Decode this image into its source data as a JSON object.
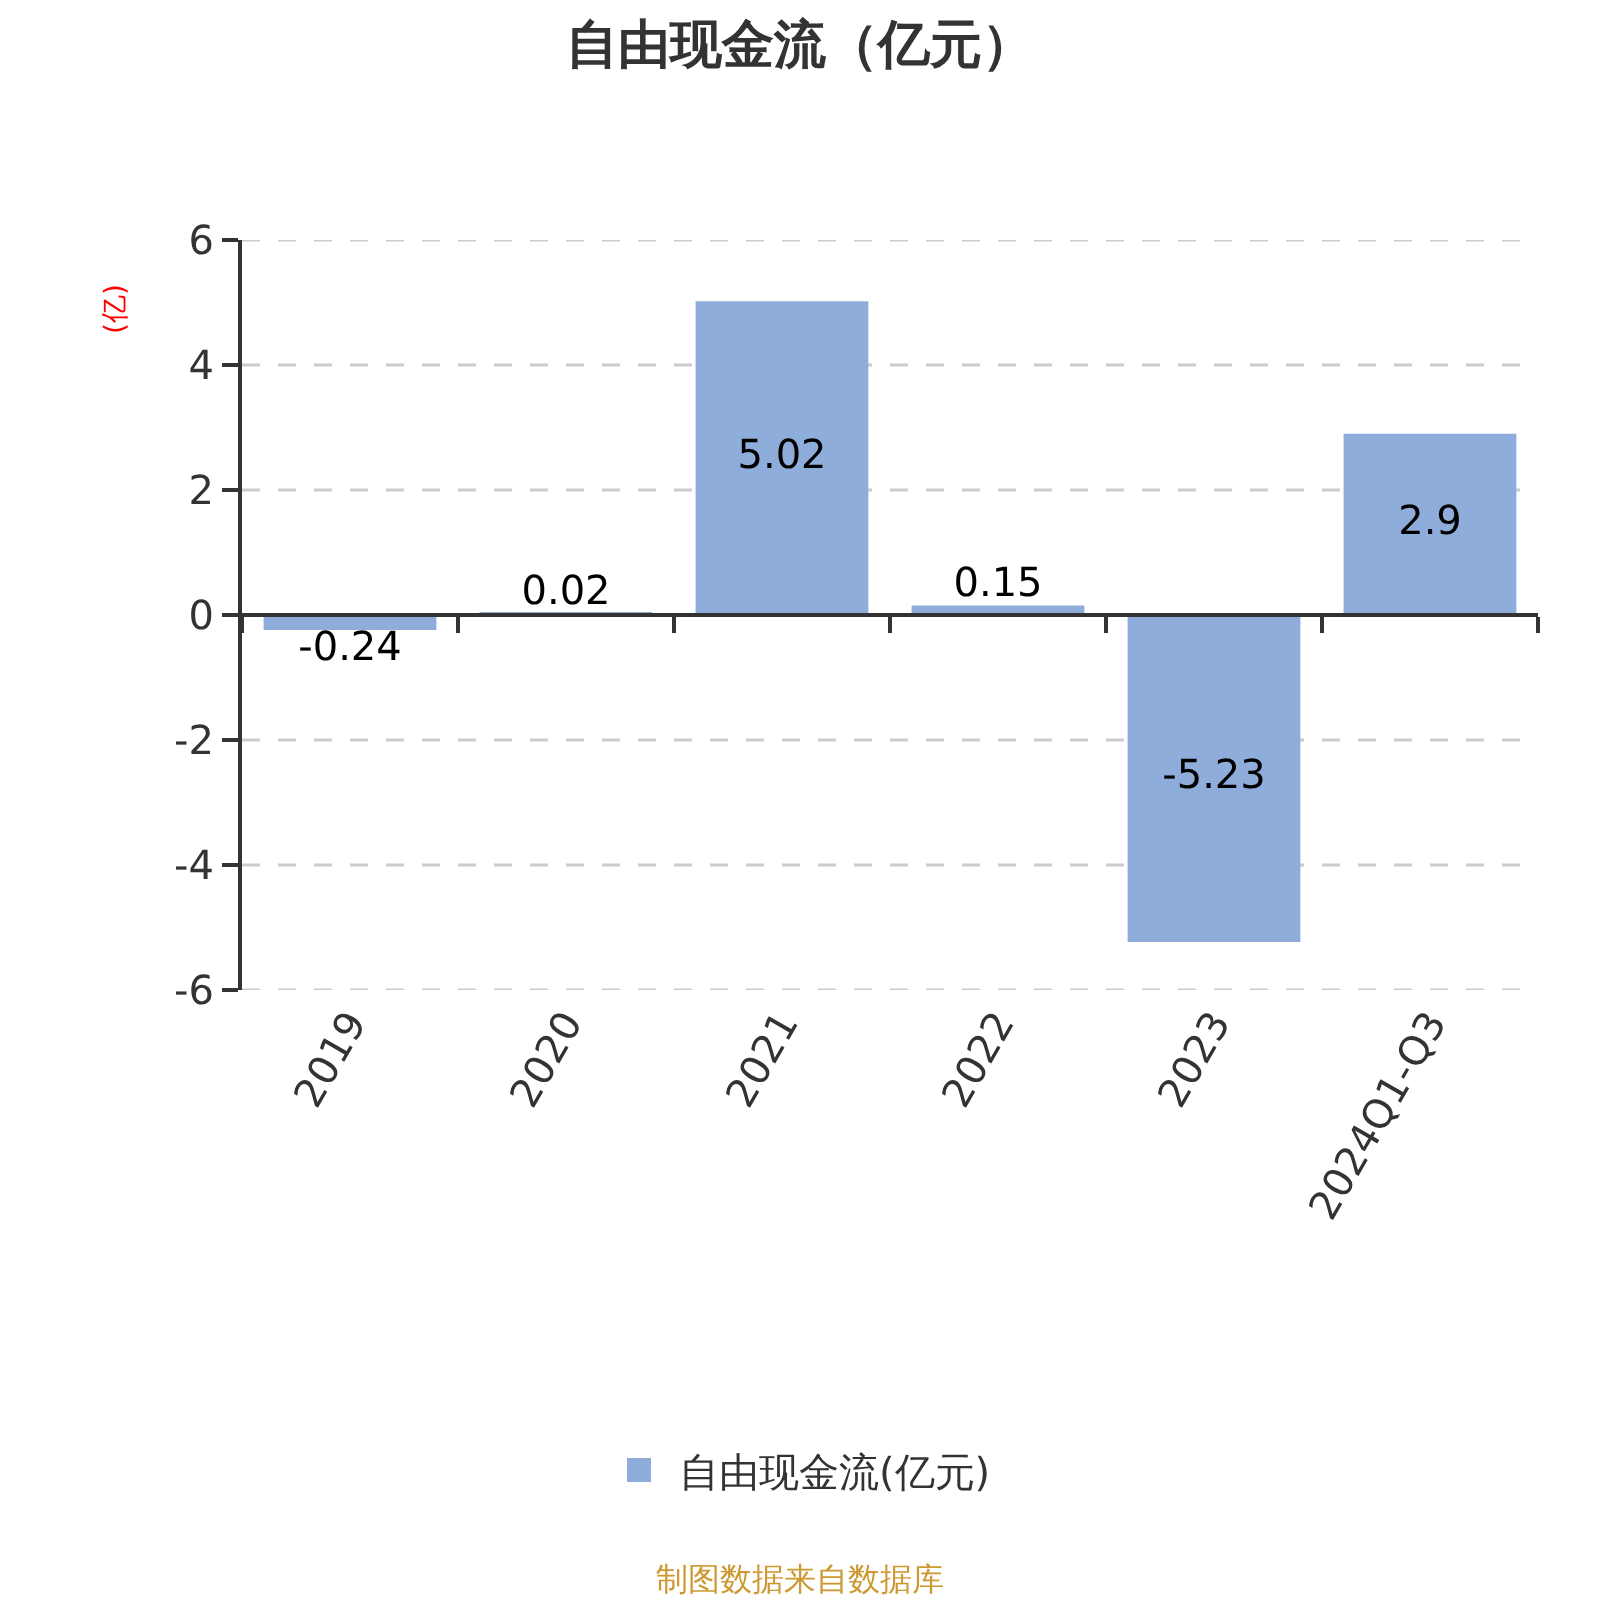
{
  "chart_data": {
    "type": "bar",
    "title": "自由现金流（亿元）",
    "ylabel": "(亿)",
    "categories": [
      "2019",
      "2020",
      "2021",
      "2022",
      "2023",
      "2024Q1-Q3"
    ],
    "series": [
      {
        "name": "自由现金流(亿元)",
        "color": "#8eaddb",
        "values": [
          -0.24,
          0.02,
          5.02,
          0.15,
          -5.23,
          2.9
        ]
      }
    ],
    "ylim": [
      -6,
      6
    ],
    "yticks": [
      -6,
      -4,
      -2,
      0,
      2,
      4,
      6
    ],
    "grid": "y",
    "legend": "bottom",
    "data_labels": true,
    "annotations": [
      "制图数据来自数据库"
    ]
  }
}
